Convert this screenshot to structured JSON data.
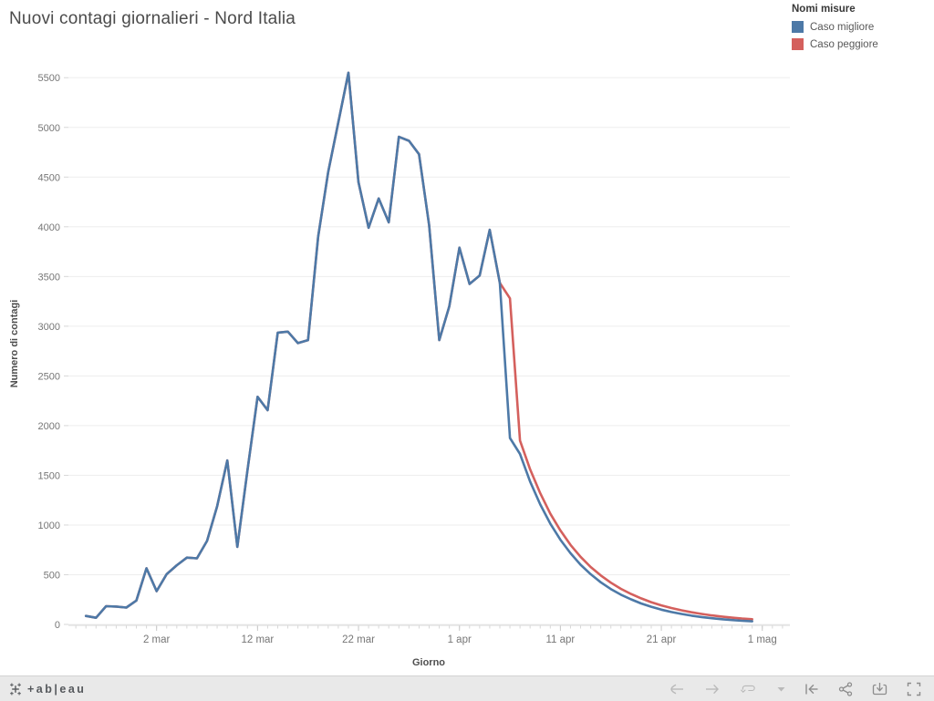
{
  "title": "Nuovi contagi giornalieri - Nord Italia",
  "legend": {
    "title": "Nomi misure",
    "items": [
      {
        "label": "Caso migliore",
        "color": "#4d79a7"
      },
      {
        "label": "Caso peggiore",
        "color": "#d4605d"
      }
    ]
  },
  "chart_data": {
    "type": "line",
    "title": "Nuovi contagi giornalieri - Nord Italia",
    "xlabel": "Giorno",
    "ylabel": "Numero di contagi",
    "ylim": [
      0,
      5600
    ],
    "grid": "horizontal",
    "legend_position": "top-right",
    "x_dates": [
      "24 feb",
      "25 feb",
      "26 feb",
      "27 feb",
      "28 feb",
      "29 feb",
      "1 mar",
      "2 mar",
      "3 mar",
      "4 mar",
      "5 mar",
      "6 mar",
      "7 mar",
      "8 mar",
      "9 mar",
      "10 mar",
      "11 mar",
      "12 mar",
      "13 mar",
      "14 mar",
      "15 mar",
      "16 mar",
      "17 mar",
      "18 mar",
      "19 mar",
      "20 mar",
      "21 mar",
      "22 mar",
      "23 mar",
      "24 mar",
      "25 mar",
      "26 mar",
      "27 mar",
      "28 mar",
      "29 mar",
      "30 mar",
      "31 mar",
      "1 apr",
      "2 apr",
      "3 apr",
      "4 apr",
      "5 apr",
      "6 apr",
      "7 apr",
      "8 apr",
      "9 apr",
      "10 apr",
      "11 apr",
      "12 apr",
      "13 apr",
      "14 apr",
      "15 apr",
      "16 apr",
      "17 apr",
      "18 apr",
      "19 apr",
      "20 apr",
      "21 apr",
      "22 apr",
      "23 apr",
      "24 apr",
      "25 apr",
      "26 apr",
      "27 apr",
      "28 apr",
      "29 apr",
      "30 apr"
    ],
    "y_ticks": [
      0,
      500,
      1000,
      1500,
      2000,
      2500,
      3000,
      3500,
      4000,
      4500,
      5000,
      5500
    ],
    "x_tick_labels": [
      {
        "label": "2 mar",
        "index": 7
      },
      {
        "label": "12 mar",
        "index": 17
      },
      {
        "label": "22 mar",
        "index": 27
      },
      {
        "label": "1 apr",
        "index": 37
      },
      {
        "label": "11 apr",
        "index": 47
      },
      {
        "label": "21 apr",
        "index": 57
      },
      {
        "label": "1 mag",
        "index": 67
      }
    ],
    "series": [
      {
        "name": "Caso migliore",
        "color": "#4d79a7",
        "values": [
          85,
          67,
          183,
          180,
          170,
          240,
          565,
          335,
          505,
          595,
          672,
          665,
          840,
          1190,
          1650,
          780,
          1550,
          2290,
          2155,
          2935,
          2945,
          2830,
          2860,
          3900,
          4550,
          5050,
          5550,
          4450,
          3990,
          4285,
          4045,
          4905,
          4865,
          4730,
          4015,
          2860,
          3200,
          3790,
          3425,
          3510,
          3970,
          3435,
          1875,
          1715,
          1437,
          1207,
          1014,
          852,
          716,
          601,
          505,
          424,
          356,
          299,
          252,
          211,
          178,
          149,
          125,
          105,
          88,
          74,
          62,
          52,
          44,
          37,
          31
        ]
      },
      {
        "name": "Caso peggiore",
        "color": "#d4605d",
        "values": [
          85,
          67,
          183,
          180,
          170,
          240,
          565,
          335,
          505,
          595,
          672,
          665,
          840,
          1190,
          1650,
          780,
          1550,
          2290,
          2155,
          2935,
          2945,
          2830,
          2860,
          3900,
          4550,
          5050,
          5550,
          4450,
          3990,
          4285,
          4045,
          4905,
          4865,
          4730,
          4015,
          2860,
          3200,
          3790,
          3425,
          3510,
          3970,
          3435,
          3280,
          1850,
          1560,
          1320,
          1115,
          945,
          800,
          680,
          578,
          492,
          420,
          358,
          306,
          262,
          224,
          192,
          165,
          142,
          122,
          105,
          91,
          79,
          68,
          59,
          52
        ]
      }
    ]
  },
  "toolbar": {
    "logo_text": "+ab|eau",
    "icons": [
      "undo",
      "redo",
      "refresh",
      "refresh-dropdown",
      "revert",
      "share",
      "download",
      "fullscreen"
    ]
  }
}
